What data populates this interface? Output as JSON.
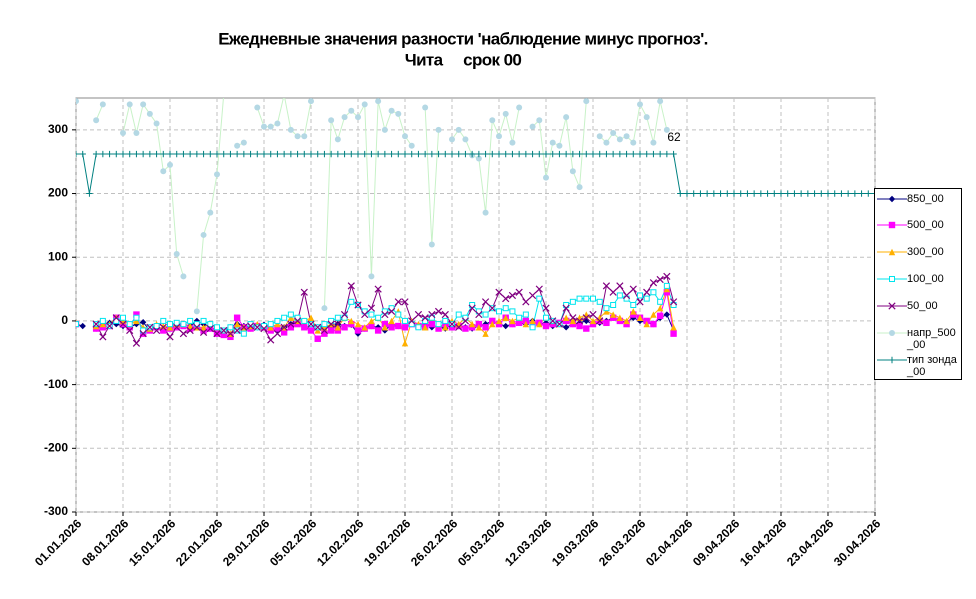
{
  "chart_data": {
    "type": "line",
    "title": "Ежедневные значения разности 'наблюдение минус прогноз'.",
    "subtitle": "Чита     срок 00",
    "annotations": [
      "62"
    ],
    "x": [
      "01.01.2026",
      "02.01.2026",
      "03.01.2026",
      "04.01.2026",
      "05.01.2026",
      "06.01.2026",
      "07.01.2026",
      "08.01.2026",
      "09.01.2026",
      "10.01.2026",
      "11.01.2026",
      "12.01.2026",
      "13.01.2026",
      "14.01.2026",
      "15.01.2026",
      "16.01.2026",
      "17.01.2026",
      "18.01.2026",
      "19.01.2026",
      "20.01.2026",
      "21.01.2026",
      "22.01.2026",
      "23.01.2026",
      "24.01.2026",
      "25.01.2026",
      "26.01.2026",
      "27.01.2026",
      "28.01.2026",
      "29.01.2026",
      "30.01.2026",
      "31.01.2026",
      "01.02.2026",
      "02.02.2026",
      "03.02.2026",
      "04.02.2026",
      "05.02.2026",
      "06.02.2026",
      "07.02.2026",
      "08.02.2026",
      "09.02.2026",
      "10.02.2026",
      "11.02.2026",
      "12.02.2026",
      "13.02.2026",
      "14.02.2026",
      "15.02.2026",
      "16.02.2026",
      "17.02.2026",
      "18.02.2026",
      "19.02.2026",
      "20.02.2026",
      "21.02.2026",
      "22.02.2026",
      "23.02.2026",
      "24.02.2026",
      "25.02.2026",
      "26.02.2026",
      "27.02.2026",
      "28.02.2026",
      "01.03.2026",
      "02.03.2026",
      "03.03.2026",
      "04.03.2026",
      "05.03.2026",
      "06.03.2026",
      "07.03.2026",
      "08.03.2026",
      "09.03.2026",
      "10.03.2026",
      "11.03.2026",
      "12.03.2026",
      "13.03.2026",
      "14.03.2026",
      "15.03.2026",
      "16.03.2026",
      "17.03.2026",
      "18.03.2026",
      "19.03.2026",
      "20.03.2026",
      "21.03.2026",
      "22.03.2026",
      "23.03.2026",
      "24.03.2026",
      "25.03.2026",
      "26.03.2026",
      "27.03.2026",
      "28.03.2026",
      "29.03.2026",
      "30.03.2026",
      "31.03.2026",
      "01.04.2026",
      "02.04.2026",
      "03.04.2026",
      "04.04.2026",
      "05.04.2026",
      "06.04.2026",
      "07.04.2026",
      "08.04.2026",
      "09.04.2026",
      "10.04.2026",
      "11.04.2026",
      "12.04.2026",
      "13.04.2026",
      "14.04.2026",
      "15.04.2026",
      "16.04.2026",
      "17.04.2026",
      "18.04.2026",
      "19.04.2026",
      "20.04.2026",
      "21.04.2026",
      "22.04.2026",
      "23.04.2026",
      "24.04.2026",
      "25.04.2026",
      "26.04.2026",
      "27.04.2026",
      "28.04.2026",
      "29.04.2026",
      "30.04.2026"
    ],
    "xlim": [
      "01.01.2026",
      "30.04.2026"
    ],
    "xticks": [
      "01.01.2026",
      "08.01.2026",
      "15.01.2026",
      "22.01.2026",
      "29.01.2026",
      "05.02.2026",
      "12.02.2026",
      "19.02.2026",
      "26.02.2026",
      "05.03.2026",
      "12.03.2026",
      "19.03.2026",
      "26.03.2026",
      "02.04.2026",
      "09.04.2026",
      "16.04.2026",
      "23.04.2026",
      "30.04.2026"
    ],
    "ylim": [
      -300,
      350
    ],
    "yticks": [
      -300,
      -200,
      -100,
      0,
      100,
      200,
      300
    ],
    "grid": true,
    "legend": "right",
    "series": [
      {
        "name": "850_00",
        "color": "#000080",
        "marker": "diamond",
        "values": [
          -5,
          -8,
          null,
          -12,
          -6,
          -3,
          -5,
          -8,
          -10,
          -5,
          -2,
          -15,
          -10,
          -12,
          -8,
          -10,
          -5,
          -8,
          0,
          -5,
          -10,
          -15,
          -18,
          -10,
          -5,
          -8,
          -12,
          -10,
          -6,
          -12,
          -15,
          -10,
          -5,
          -3,
          -8,
          -15,
          -10,
          -8,
          -10,
          -5,
          -8,
          -6,
          -20,
          -12,
          -8,
          -10,
          -15,
          -5,
          -8,
          -10,
          -5,
          -8,
          -3,
          -10,
          -8,
          -12,
          -5,
          -8,
          -10,
          -12,
          -8,
          -5,
          0,
          -5,
          -8,
          -5,
          -3,
          -5,
          0,
          -5,
          -3,
          -8,
          -5,
          -10,
          -5,
          -3,
          0,
          -5,
          -3,
          0,
          5,
          0,
          -2,
          5,
          0,
          -3,
          -5,
          5,
          10,
          -15,
          null,
          null,
          null,
          null,
          null,
          null,
          null,
          null,
          null,
          null,
          null,
          null,
          null,
          null,
          null,
          null,
          null,
          null,
          null,
          null,
          null,
          null,
          null,
          null,
          null,
          null,
          null,
          null,
          null,
          null
        ]
      },
      {
        "name": "500_00",
        "color": "#ff00ff",
        "marker": "square",
        "values": [
          -5,
          null,
          null,
          -12,
          -10,
          -8,
          5,
          -5,
          -10,
          10,
          -20,
          -15,
          -10,
          -15,
          -12,
          -10,
          -8,
          -12,
          -10,
          -15,
          -12,
          -20,
          -22,
          -25,
          5,
          -10,
          -12,
          -8,
          -10,
          -15,
          -12,
          -18,
          -10,
          -5,
          -10,
          -15,
          -28,
          -20,
          -15,
          -15,
          -10,
          -5,
          -15,
          -12,
          -8,
          -15,
          -5,
          -10,
          -8,
          -10,
          -5,
          -8,
          -10,
          -5,
          -12,
          -5,
          -10,
          -8,
          -12,
          -10,
          -5,
          -10,
          0,
          -5,
          5,
          -5,
          -3,
          0,
          -5,
          -3,
          -8,
          -5,
          -3,
          0,
          -5,
          -8,
          -12,
          -5,
          0,
          -3,
          5,
          0,
          -5,
          10,
          5,
          0,
          -5,
          8,
          45,
          -20,
          null,
          null,
          null,
          null,
          null,
          null,
          null,
          null,
          null,
          null,
          null,
          null,
          null,
          null,
          null,
          null,
          null,
          null,
          null,
          null,
          null,
          null,
          null,
          null,
          null,
          null,
          null,
          null,
          null,
          null
        ]
      },
      {
        "name": "300_00",
        "color": "#ffb000",
        "marker": "triangle",
        "values": [
          -3,
          null,
          null,
          -8,
          -5,
          -5,
          5,
          0,
          -5,
          0,
          -10,
          -12,
          -5,
          -8,
          -10,
          -5,
          -5,
          -8,
          -10,
          -10,
          -5,
          -10,
          -15,
          -20,
          -5,
          -10,
          -8,
          -5,
          -8,
          -10,
          -5,
          -10,
          5,
          0,
          0,
          5,
          -15,
          -10,
          -5,
          -10,
          5,
          0,
          -5,
          -10,
          0,
          5,
          -10,
          0,
          15,
          -35,
          0,
          -5,
          -10,
          5,
          -5,
          -10,
          0,
          -5,
          5,
          -5,
          -10,
          -20,
          -5,
          0,
          5,
          0,
          5,
          -5,
          0,
          -5,
          5,
          0,
          -5,
          5,
          0,
          5,
          10,
          0,
          5,
          15,
          10,
          5,
          0,
          15,
          5,
          -5,
          10,
          20,
          50,
          -10,
          null,
          null,
          null,
          null,
          null,
          null,
          null,
          null,
          null,
          null,
          null,
          null,
          null,
          null,
          null,
          null,
          null,
          null,
          null,
          null,
          null,
          null,
          null,
          null,
          null,
          null,
          null,
          null,
          null,
          null
        ]
      },
      {
        "name": "100_00",
        "color": "#00e5ee",
        "marker": "square-open",
        "values": [
          -5,
          null,
          null,
          -5,
          0,
          -8,
          0,
          5,
          -5,
          5,
          -15,
          -10,
          -8,
          0,
          -5,
          -3,
          -5,
          0,
          -5,
          0,
          -5,
          -10,
          -15,
          -10,
          -15,
          -20,
          -5,
          -10,
          -8,
          -5,
          0,
          5,
          10,
          5,
          0,
          -5,
          -10,
          -5,
          0,
          5,
          5,
          30,
          25,
          15,
          10,
          5,
          15,
          20,
          10,
          0,
          -5,
          -10,
          0,
          5,
          -5,
          0,
          -5,
          10,
          5,
          25,
          15,
          10,
          20,
          15,
          20,
          15,
          5,
          10,
          -10,
          35,
          5,
          0,
          -5,
          25,
          30,
          35,
          35,
          35,
          30,
          20,
          25,
          40,
          35,
          25,
          40,
          35,
          45,
          30,
          55,
          25,
          null,
          null,
          null,
          null,
          null,
          null,
          null,
          null,
          null,
          null,
          null,
          null,
          null,
          null,
          null,
          null,
          null,
          null,
          null,
          null,
          null,
          null,
          null,
          null,
          null,
          null,
          null,
          null,
          null,
          null
        ]
      },
      {
        "name": "50_00",
        "color": "#800080",
        "marker": "x",
        "values": [
          null,
          null,
          null,
          -5,
          -25,
          -8,
          5,
          -5,
          -15,
          -35,
          -20,
          -10,
          -15,
          -10,
          -25,
          -10,
          -20,
          -15,
          -10,
          -18,
          -12,
          -20,
          -15,
          -20,
          -15,
          -10,
          -8,
          -10,
          -12,
          -30,
          -20,
          -10,
          -5,
          0,
          45,
          -5,
          -10,
          -15,
          -5,
          -5,
          10,
          55,
          25,
          10,
          20,
          50,
          10,
          15,
          30,
          30,
          0,
          10,
          5,
          10,
          15,
          10,
          -5,
          -10,
          0,
          20,
          10,
          30,
          20,
          45,
          35,
          40,
          45,
          30,
          40,
          50,
          20,
          0,
          -5,
          20,
          5,
          0,
          5,
          10,
          0,
          55,
          45,
          55,
          40,
          50,
          30,
          45,
          60,
          65,
          70,
          30,
          null,
          null,
          null,
          null,
          null,
          null,
          null,
          null,
          null,
          null,
          null,
          null,
          null,
          null,
          null,
          null,
          null,
          null,
          null,
          null,
          null,
          null,
          null,
          null,
          null,
          null,
          null,
          null,
          null,
          null
        ]
      },
      {
        "name": "напр_500_00",
        "color": "#b4d8e4",
        "line_color": "#c8f2c8",
        "marker": "circle",
        "values": [
          345,
          null,
          null,
          315,
          340,
          null,
          null,
          295,
          340,
          295,
          340,
          325,
          310,
          235,
          245,
          105,
          70,
          null,
          15,
          135,
          170,
          230,
          355,
          null,
          275,
          280,
          null,
          335,
          305,
          305,
          310,
          355,
          300,
          290,
          290,
          345,
          null,
          20,
          315,
          285,
          320,
          330,
          320,
          340,
          70,
          345,
          300,
          330,
          325,
          290,
          275,
          null,
          335,
          120,
          300,
          null,
          285,
          300,
          285,
          260,
          255,
          170,
          315,
          290,
          325,
          280,
          335,
          null,
          305,
          315,
          225,
          280,
          275,
          320,
          235,
          210,
          345,
          null,
          290,
          280,
          295,
          285,
          290,
          280,
          340,
          320,
          280,
          345,
          300,
          null,
          null,
          null,
          null,
          null,
          null,
          null,
          null,
          null,
          null,
          null,
          null,
          null,
          null,
          null,
          null,
          null,
          null,
          null,
          null,
          null,
          null,
          null,
          null,
          null,
          null,
          null,
          null,
          null,
          null,
          null
        ]
      },
      {
        "name": "тип зонда_00",
        "color": "#008080",
        "marker": "plus",
        "values": [
          262,
          262,
          200,
          262,
          262,
          262,
          262,
          262,
          262,
          262,
          262,
          262,
          262,
          262,
          262,
          262,
          262,
          262,
          262,
          262,
          262,
          262,
          262,
          262,
          262,
          262,
          262,
          262,
          262,
          262,
          262,
          262,
          262,
          262,
          262,
          262,
          262,
          262,
          262,
          262,
          262,
          262,
          262,
          262,
          262,
          262,
          262,
          262,
          262,
          262,
          262,
          262,
          262,
          262,
          262,
          262,
          262,
          262,
          262,
          262,
          262,
          262,
          262,
          262,
          262,
          262,
          262,
          262,
          262,
          262,
          262,
          262,
          262,
          262,
          262,
          262,
          262,
          262,
          262,
          262,
          262,
          262,
          262,
          262,
          262,
          262,
          262,
          262,
          262,
          262,
          200,
          200,
          200,
          200,
          200,
          200,
          200,
          200,
          200,
          200,
          200,
          200,
          200,
          200,
          200,
          200,
          200,
          200,
          200,
          200,
          200,
          200,
          200,
          200,
          200,
          200,
          200,
          200,
          200,
          200
        ]
      }
    ]
  }
}
